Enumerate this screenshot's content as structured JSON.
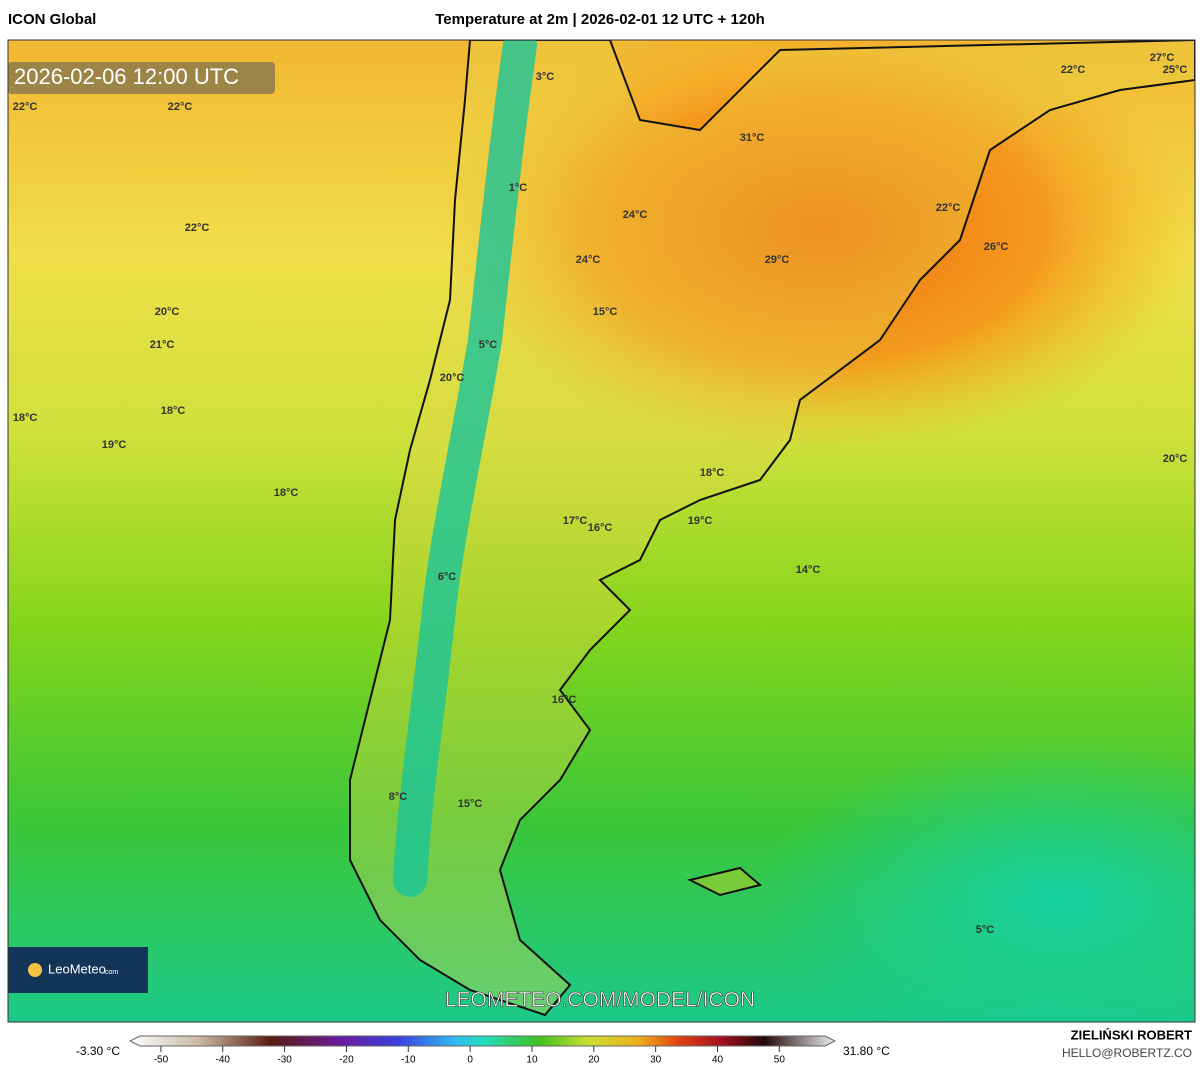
{
  "header": {
    "left": "ICON Global",
    "title": "Temperature at 2m | 2026-02-01 12 UTC + 120h"
  },
  "map": {
    "timestamp": "2026-02-06 12:00 UTC",
    "watermark": "LEOMETEO.COM/MODEL/ICON",
    "logo": "LeoMeteo",
    "logo_suffix": ".com",
    "labels": [
      "3°C",
      "22°C",
      "22°C",
      "31°C",
      "22°C",
      "27°C",
      "25°C",
      "1°C",
      "24°C",
      "22°C",
      "22°C",
      "24°C",
      "29°C",
      "26°C",
      "20°C",
      "15°C",
      "21°C",
      "5°C",
      "20°C",
      "18°C",
      "18°C",
      "19°C",
      "18°C",
      "20°C",
      "18°C",
      "17°C",
      "16°C",
      "19°C",
      "6°C",
      "14°C",
      "16°C",
      "8°C",
      "15°C",
      "5°C"
    ]
  },
  "colorbar": {
    "min_label": "-3.30 °C",
    "max_label": "31.80 °C",
    "lim": [
      -55,
      59
    ],
    "ticks": [
      -50,
      -40,
      -30,
      -20,
      -10,
      0,
      10,
      20,
      30,
      40,
      50
    ]
  },
  "footer": {
    "author": "ZIELIŃSKI ROBERT",
    "email": "HELLO@ROBERTZ.CO"
  }
}
